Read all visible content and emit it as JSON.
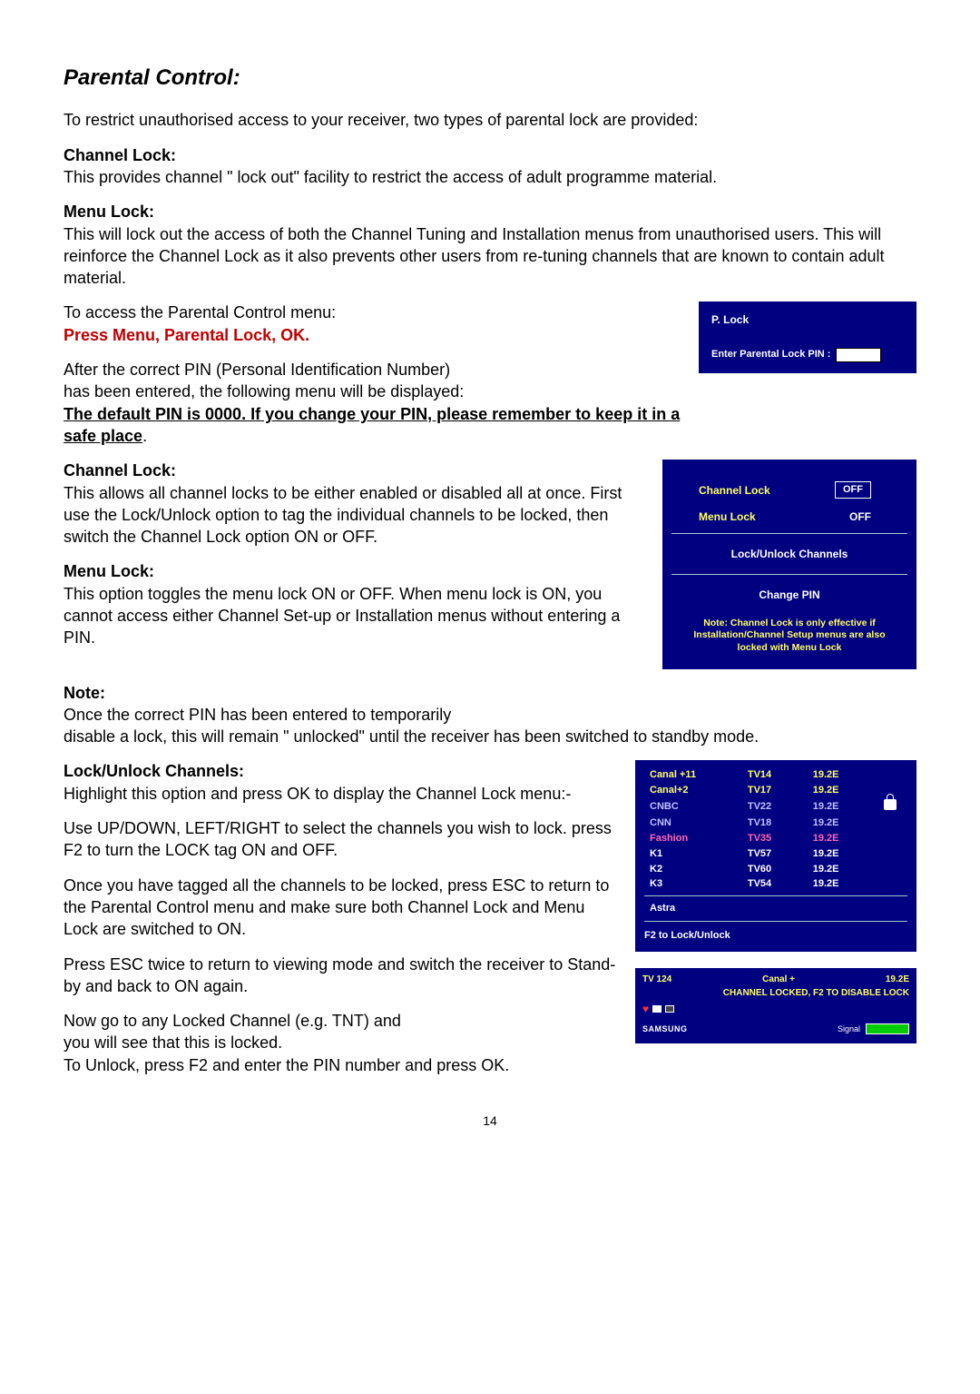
{
  "page_number": "14",
  "title": "Parental Control:",
  "intro": "To restrict unauthorised access to your receiver, two types of parental lock are provided:",
  "channel_lock_h": "Channel Lock:",
  "channel_lock_t": "This provides channel \" lock out\" facility to restrict the access of adult programme material.",
  "menu_lock_h": "Menu Lock:",
  "menu_lock_t": "This will lock out the access of both the Channel Tuning and Installation menus from unauthorised users. This will reinforce the Channel Lock as it also prevents other users from re-tuning channels that are known to contain adult material.",
  "access_t": "To access the Parental Control menu:",
  "press_red": "Press Menu, Parental Lock, OK.",
  "after_pin_1": "After the correct PIN (Personal Identification Number)",
  "after_pin_2": "has been entered, the following menu will be displayed:",
  "default_pin_u": "The default PIN is 0000. If you change your PIN, please remember to keep it in a safe place",
  "default_pin_dot": ".",
  "cl2_h": "Channel Lock:",
  "cl2_t": "This allows all channel locks to be either enabled or disabled all at once. First use the Lock/Unlock option to tag the individual channels to be locked, then switch the Channel Lock option ON or OFF.",
  "ml2_h": "Menu Lock:",
  "ml2_t": "This option toggles the menu lock ON or OFF. When menu lock is ON, you cannot access either Channel Set-up or Installation menus without entering a PIN.",
  "note_h": "Note:",
  "note_t1": "Once the correct PIN has been entered to temporarily",
  "note_t2": "disable a lock, this will remain \" unlocked\" until the receiver has been switched to standby mode.",
  "lu_h": "Lock/Unlock Channels:",
  "lu_t1": "Highlight this option and press OK to display the Channel Lock menu:-",
  "lu_t2": "Use UP/DOWN, LEFT/RIGHT to select the channels you wish to lock. press F2 to turn the LOCK tag ON and OFF.",
  "lu_t3": "Once you have tagged all the channels to be locked, press ESC to return to the Parental Control menu and make sure both Channel Lock and Menu Lock are switched to ON.",
  "lu_t4": "Press ESC twice to return to viewing mode and switch the receiver to Stand-by and back to ON again.",
  "lu_t5a": "Now go to any Locked Channel (e.g. TNT) and",
  "lu_t5b": "you will see that this is locked.",
  "lu_t6": "To Unlock, press F2 and enter the PIN number and press OK.",
  "pinbox": {
    "title": "P. Lock",
    "label": "Enter Parental Lock PIN :"
  },
  "menubox": {
    "row1_label": "Channel Lock",
    "row1_val": "OFF",
    "row2_label": "Menu Lock",
    "row2_val": "OFF",
    "lockunlock": "Lock/Unlock Channels",
    "changepin": "Change PIN",
    "note1": "Note: Channel Lock is only effective if",
    "note2": "Installation/Channel Setup menus are also",
    "note3": "locked with Menu Lock"
  },
  "chanbox": {
    "rows": [
      {
        "c": "sel",
        "a": "Canal +11",
        "b": "TV14",
        "d": "19.2E"
      },
      {
        "c": "sel",
        "a": "Canal+2",
        "b": "TV17",
        "d": "19.2E"
      },
      {
        "c": "dim",
        "a": "CNBC",
        "b": "TV22",
        "d": "19.2E",
        "lock": true
      },
      {
        "c": "dim",
        "a": "CNN",
        "b": "TV18",
        "d": "19.2E"
      },
      {
        "c": "pk",
        "a": "Fashion",
        "b": "TV35",
        "d": "19.2E"
      },
      {
        "c": "nrm",
        "a": "K1",
        "b": "TV57",
        "d": "19.2E"
      },
      {
        "c": "nrm",
        "a": "K2",
        "b": "TV60",
        "d": "19.2E"
      },
      {
        "c": "nrm",
        "a": "K3",
        "b": "TV54",
        "d": "19.2E"
      }
    ],
    "sat": "Astra",
    "footer": "F2 to Lock/Unlock"
  },
  "status": {
    "left": "TV 124",
    "center": "Canal +",
    "right": "19.2E",
    "msg": "CHANNEL LOCKED, F2 TO DISABLE LOCK",
    "brand": "SAMSUNG",
    "signal": "Signal"
  }
}
